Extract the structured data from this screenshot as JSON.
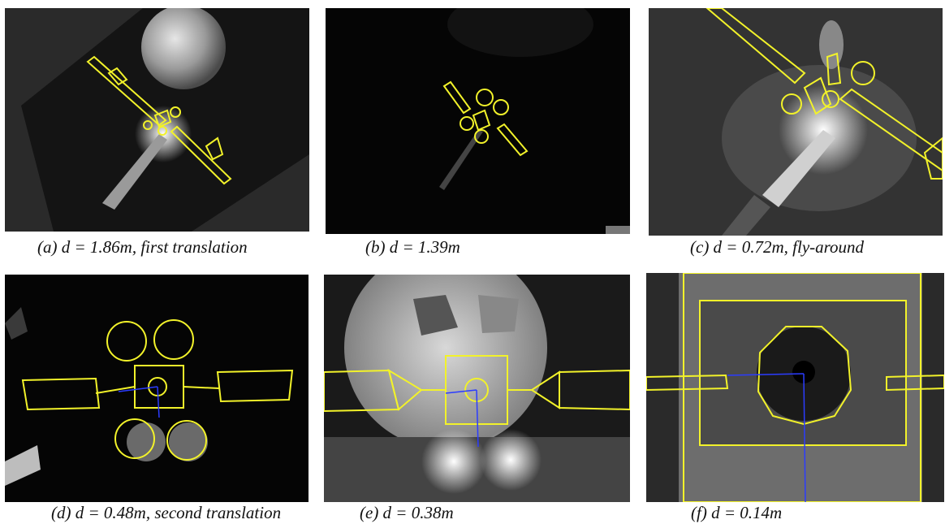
{
  "figure": {
    "panels": [
      {
        "id": "a",
        "caption": "(a) d = 1.86m, first translation"
      },
      {
        "id": "b",
        "caption": "(b) d = 1.39m"
      },
      {
        "id": "c",
        "caption": "(c) d = 0.72m, fly-around"
      },
      {
        "id": "d",
        "caption": "(d) d = 0.48m, second translation"
      },
      {
        "id": "e",
        "caption": "(e) d = 0.38m"
      },
      {
        "id": "f",
        "caption": "(f) d = 0.14m"
      }
    ],
    "overlay_color": "#f2f22a",
    "axis_color": "#2b3cff",
    "background_color": "#0a0a0a"
  }
}
